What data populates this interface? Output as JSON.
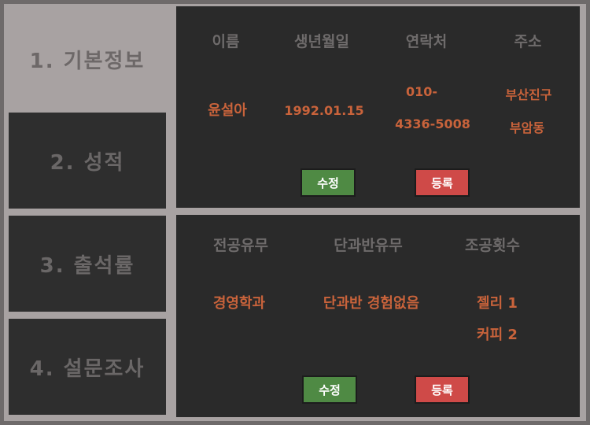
{
  "sidebar": {
    "items": [
      {
        "label": "1. 기본정보"
      },
      {
        "label": "2. 성적"
      },
      {
        "label": "3. 출석률"
      },
      {
        "label": "4. 설문조사"
      }
    ]
  },
  "basic_info": {
    "headers": [
      "이름",
      "생년월일",
      "연락처",
      "주소"
    ],
    "name": "윤설아",
    "birth": "1992.01.15",
    "phone_line1": "010-",
    "phone_line2": "4336-5008",
    "address_line1": "부산진구",
    "address_line2": "부암동",
    "edit_label": "수정",
    "register_label": "등록"
  },
  "extra_info": {
    "headers": [
      "전공유무",
      "단과반유무",
      "조공횟수"
    ],
    "major": "경영학과",
    "class_history": "단과반 경험없음",
    "gift_line1": "젤리 1",
    "gift_line2": "커피 2",
    "edit_label": "수정",
    "register_label": "등록"
  },
  "colors": {
    "accent": "#c9633b",
    "edit_button": "#4f8a44",
    "register_button": "#cf4a48",
    "panel_bg": "#2a2a2a"
  }
}
